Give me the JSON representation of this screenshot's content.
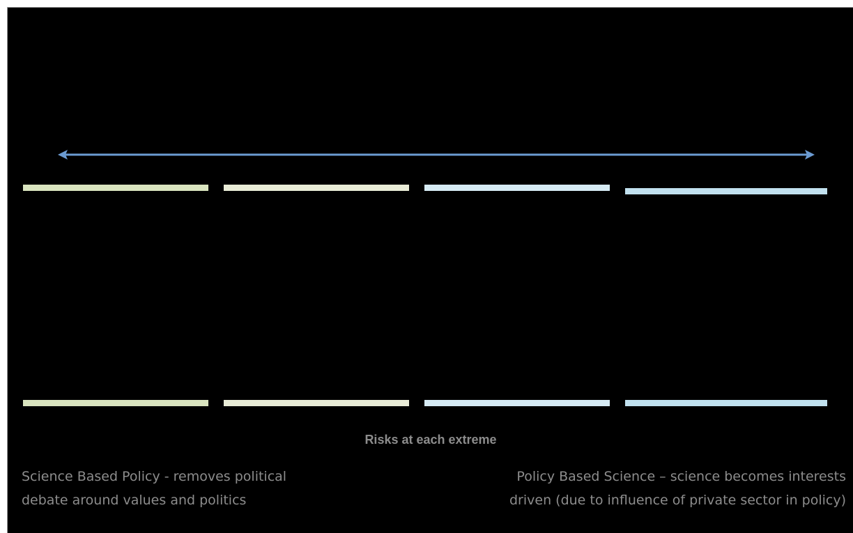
{
  "colors": {
    "background": "#000000",
    "arrow": "#6b9bd2",
    "bar_green_1": "#d9e4bf",
    "bar_green_2": "#e9ecd7",
    "bar_blue_1": "#d6ebf4",
    "bar_blue_2": "#c1e1ef",
    "text": "#8c8c8c"
  },
  "spectrum": {
    "arrow_icon": "double-headed-arrow-icon"
  },
  "risks": {
    "title": "Risks at each extreme",
    "left": {
      "line1": "Science Based Policy - removes political",
      "line2": "debate around values and politics"
    },
    "right": {
      "line1": "Policy Based Science – science becomes interests",
      "line2": "driven (due to influence of private sector in policy)"
    }
  }
}
